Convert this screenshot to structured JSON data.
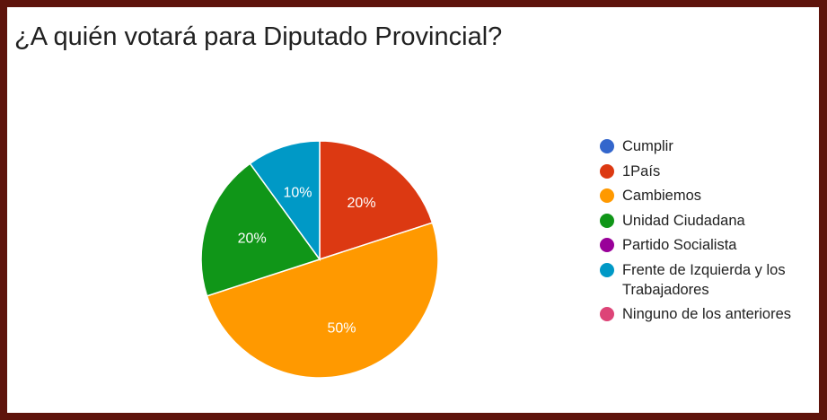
{
  "chart_data": {
    "type": "pie",
    "title": "¿A quién votará para Diputado Provincial?",
    "series": [
      {
        "name": "Cumplir",
        "value": 0,
        "label": "",
        "color": "#3366cc"
      },
      {
        "name": "1País",
        "value": 20,
        "label": "20%",
        "color": "#dc3912"
      },
      {
        "name": "Cambiemos",
        "value": 50,
        "label": "50%",
        "color": "#ff9900"
      },
      {
        "name": "Unidad Ciudadana",
        "value": 20,
        "label": "20%",
        "color": "#109618"
      },
      {
        "name": "Partido Socialista",
        "value": 0,
        "label": "",
        "color": "#990099"
      },
      {
        "name": "Frente de Izquierda y los Trabajadores",
        "value": 10,
        "label": "10%",
        "color": "#0099c6"
      },
      {
        "name": "Ninguno de los anteriores",
        "value": 0,
        "label": "",
        "color": "#dd4477"
      }
    ],
    "legend_position": "right"
  }
}
